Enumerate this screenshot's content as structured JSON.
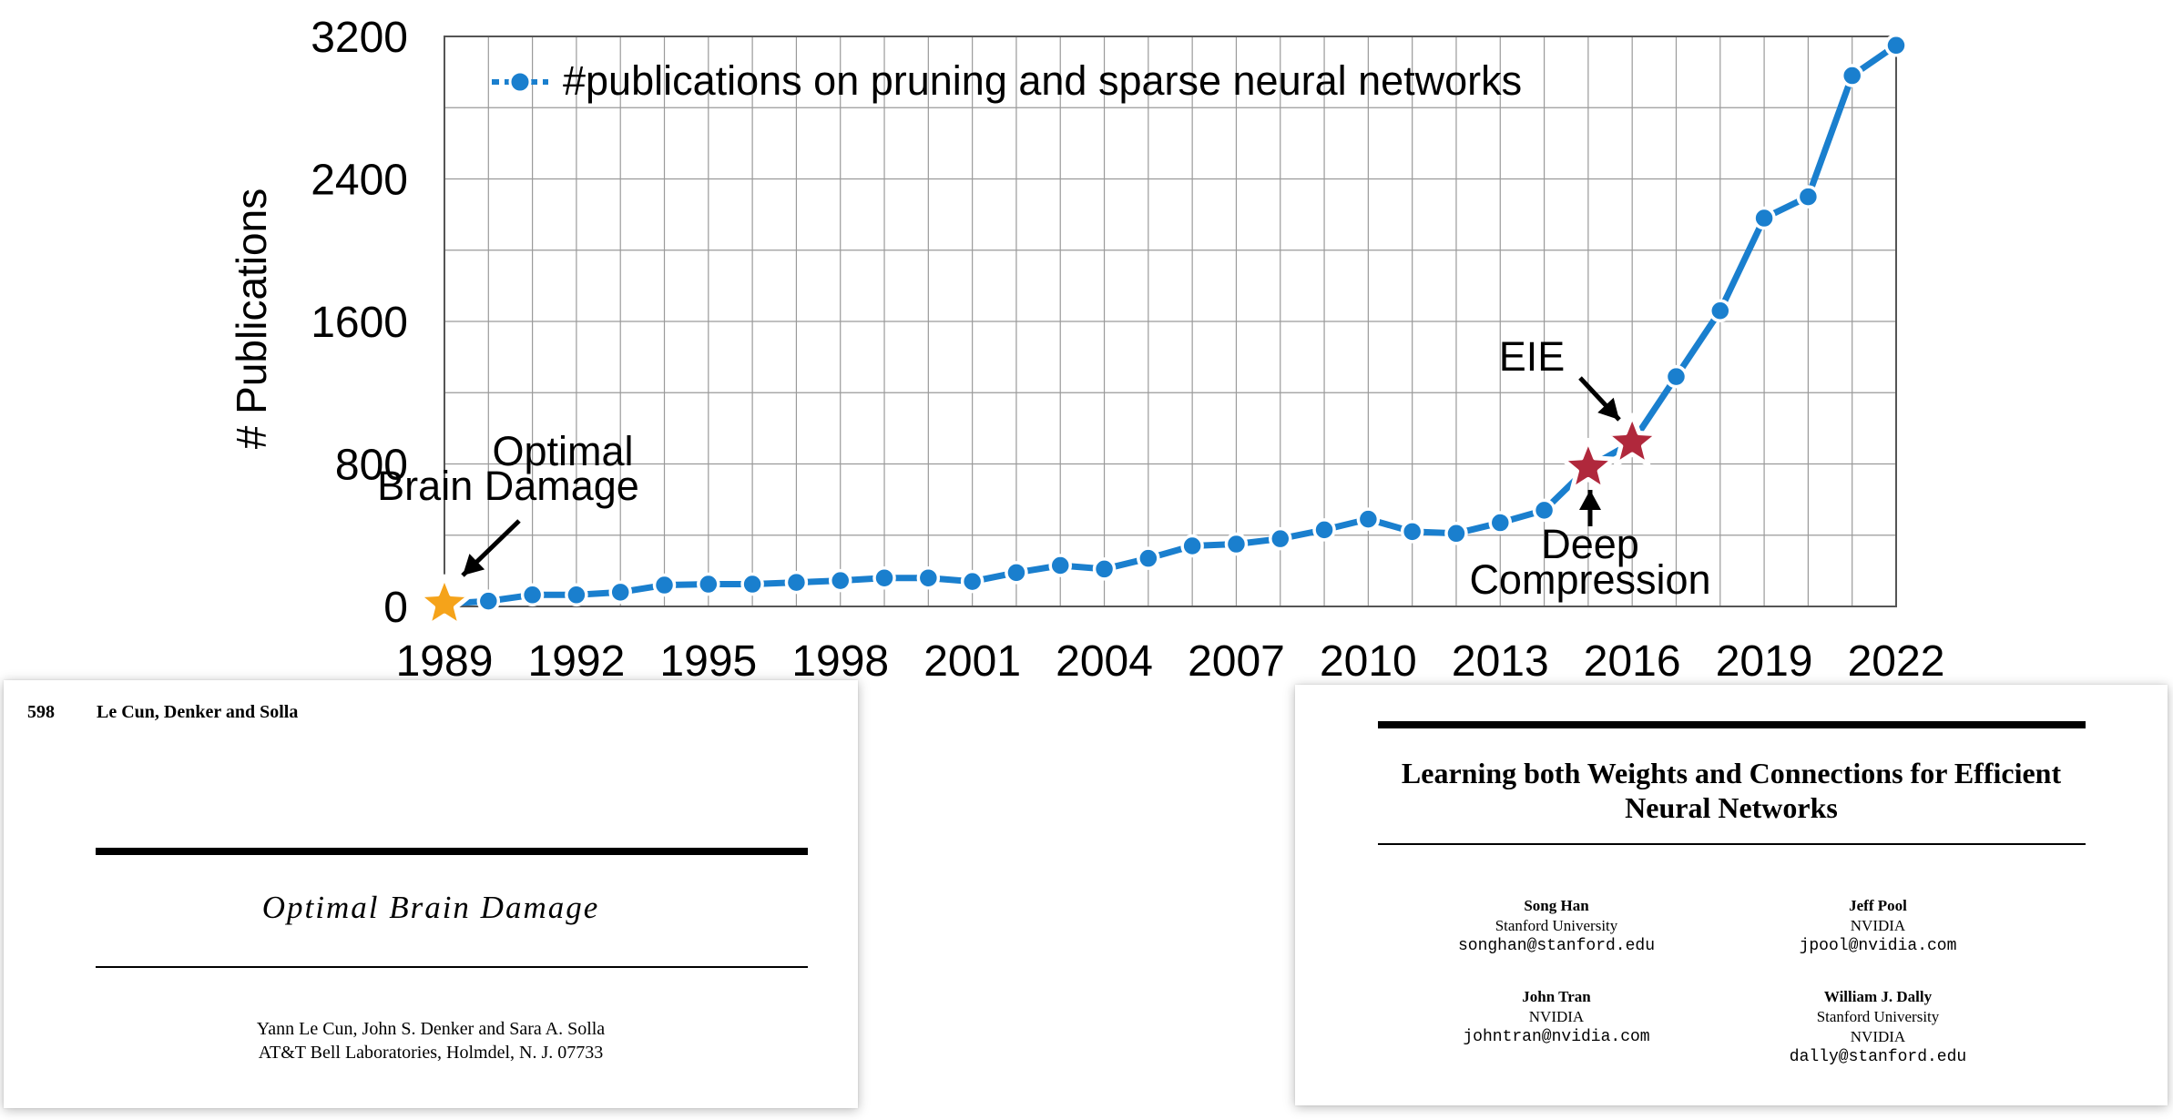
{
  "chart_data": {
    "type": "line",
    "title": "",
    "xlabel": "",
    "ylabel": "# Publications",
    "ylim": [
      0,
      3200
    ],
    "xlim": [
      1989,
      2022
    ],
    "grid": true,
    "x_ticks": [
      "1989",
      "1992",
      "1995",
      "1998",
      "2001",
      "2004",
      "2007",
      "2010",
      "2013",
      "2016",
      "2019",
      "2022"
    ],
    "y_ticks": [
      "0",
      "800",
      "1600",
      "2400",
      "3200"
    ],
    "legend": {
      "position": "top-left",
      "label": "#publications on pruning and sparse neural networks"
    },
    "series": [
      {
        "name": "#publications on pruning and sparse neural networks",
        "color": "#1a7fce",
        "x": [
          1989,
          1990,
          1991,
          1992,
          1993,
          1994,
          1995,
          1996,
          1997,
          1998,
          1999,
          2000,
          2001,
          2002,
          2003,
          2004,
          2005,
          2006,
          2007,
          2008,
          2009,
          2010,
          2011,
          2012,
          2013,
          2014,
          2015,
          2016,
          2017,
          2018,
          2019,
          2020,
          2021,
          2022
        ],
        "values": [
          15,
          30,
          65,
          65,
          80,
          120,
          125,
          125,
          135,
          145,
          160,
          160,
          140,
          190,
          230,
          210,
          270,
          340,
          350,
          380,
          430,
          490,
          420,
          410,
          470,
          540,
          780,
          920,
          1290,
          1660,
          2180,
          2300,
          2980,
          3150
        ]
      }
    ],
    "highlights": [
      {
        "x": 1989,
        "y": 15,
        "label_lines": [
          "Optimal",
          "Brain Damage"
        ],
        "star_color": "#f5a31a"
      },
      {
        "x": 2015,
        "y": 780,
        "label_lines": [
          "Deep",
          "Compression"
        ],
        "star_color": "#b0283c"
      },
      {
        "x": 2016,
        "y": 920,
        "label_lines": [
          "EIE"
        ],
        "star_color": "#b0283c"
      }
    ]
  },
  "paper_left": {
    "page_number": "598",
    "running_head": "Le Cun, Denker and Solla",
    "title": "Optimal Brain Damage",
    "authors": "Yann Le Cun, John S. Denker and Sara A. Solla",
    "affiliation": "AT&T Bell Laboratories, Holmdel, N. J. 07733"
  },
  "paper_right": {
    "title_line1": "Learning both Weights and Connections for Efficient",
    "title_line2": "Neural Networks",
    "authors": [
      {
        "name": "Song Han",
        "affil1": "Stanford University",
        "affil2": "",
        "email": "songhan@stanford.edu"
      },
      {
        "name": "Jeff Pool",
        "affil1": "NVIDIA",
        "affil2": "",
        "email": "jpool@nvidia.com"
      },
      {
        "name": "John Tran",
        "affil1": "NVIDIA",
        "affil2": "",
        "email": "johntran@nvidia.com"
      },
      {
        "name": "William J. Dally",
        "affil1": "Stanford University",
        "affil2": "NVIDIA",
        "email": "dally@stanford.edu"
      }
    ]
  }
}
